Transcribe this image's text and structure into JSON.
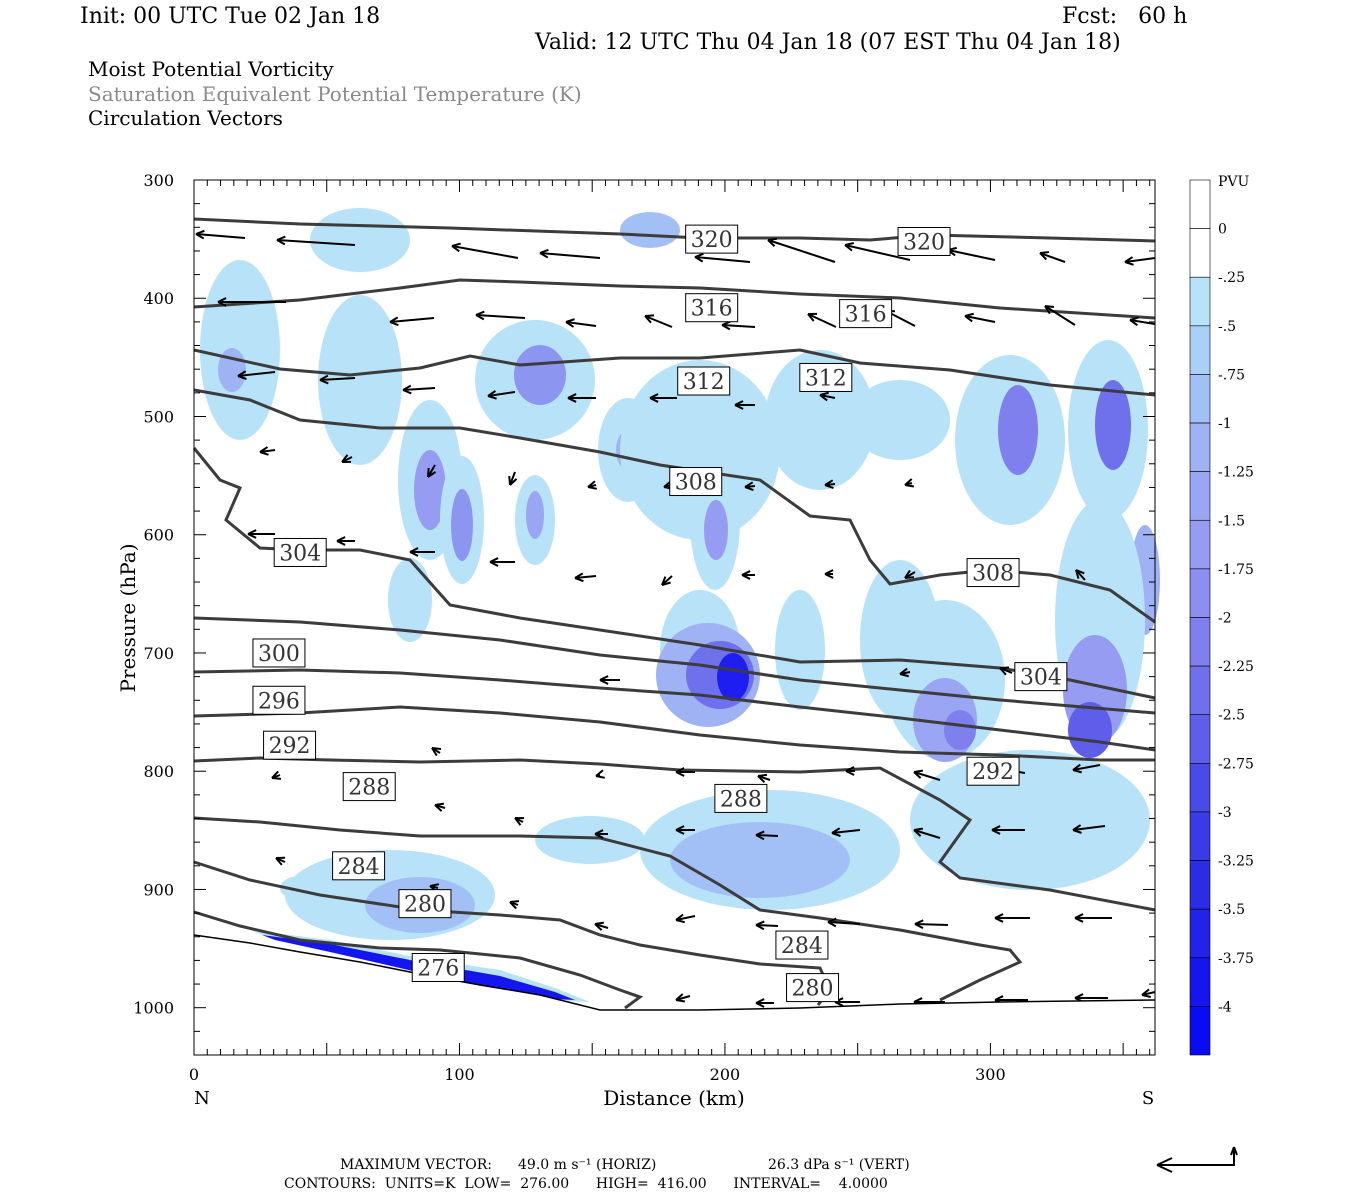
{
  "header": {
    "init": "Init: 00 UTC Tue 02 Jan 18",
    "fcst": "Fcst:   60 h",
    "valid": "Valid: 12 UTC Thu 04 Jan 18 (07 EST Thu 04 Jan 18)",
    "field1": "Moist Potential Vorticity",
    "field2": "Saturation Equivalent Potential Temperature (K)",
    "field3": "Circulation Vectors"
  },
  "footer": {
    "max_label": "MAXIMUM VECTOR:",
    "max_horiz": "49.0 m s⁻¹ (HORIZ)",
    "max_vert": "26.3 dPa s⁻¹ (VERT)",
    "contours": "CONTOURS:  UNITS=K  LOW=  276.00      HIGH=  416.00      INTERVAL=    4.0000"
  },
  "colors": {
    "contour": "#3c3c3c",
    "light_shade": "#b8e2f8",
    "mid_shade": "#8c96f0",
    "dark_shade": "#1e1ef0"
  },
  "chart_data": {
    "type": "cross-section",
    "xlabel": "Distance (km)",
    "ylabel": "Pressure (hPa)",
    "xlim": [
      0,
      362
    ],
    "ylim": [
      1040,
      300
    ],
    "x_ticks": [
      0,
      100,
      200,
      300
    ],
    "y_ticks": [
      300,
      400,
      500,
      600,
      700,
      800,
      900,
      1000
    ],
    "left_end": "N",
    "right_end": "S",
    "colorbar": {
      "unit": "PVU",
      "levels": [
        "0",
        "-.25",
        "-.5",
        "-.75",
        "-1",
        "-1.25",
        "-1.5",
        "-1.75",
        "-2",
        "-2.25",
        "-2.5",
        "-2.75",
        "-3",
        "-3.25",
        "-3.5",
        "-3.75",
        "-4"
      ],
      "colors": [
        "#ffffff",
        "#ffffff",
        "#b8e2f8",
        "#aad0f8",
        "#a3c0f6",
        "#9fb2f4",
        "#9aa6f3",
        "#969cf2",
        "#8c8ef0",
        "#7f80ee",
        "#6f70ec",
        "#5e5eea",
        "#4a4ae8",
        "#3a3ae6",
        "#2c2ce6",
        "#2222e8",
        "#1515ee",
        "#0a0af4"
      ]
    },
    "contour_labels": [
      {
        "value": "320",
        "x": 195,
        "p": 350
      },
      {
        "value": "320",
        "x": 275,
        "p": 352
      },
      {
        "value": "316",
        "x": 195,
        "p": 408
      },
      {
        "value": "316",
        "x": 253,
        "p": 413
      },
      {
        "value": "312",
        "x": 192,
        "p": 470
      },
      {
        "value": "312",
        "x": 238,
        "p": 467
      },
      {
        "value": "308",
        "x": 189,
        "p": 555
      },
      {
        "value": "308",
        "x": 301,
        "p": 632
      },
      {
        "value": "304",
        "x": 40,
        "p": 615
      },
      {
        "value": "304",
        "x": 319,
        "p": 720
      },
      {
        "value": "300",
        "x": 32,
        "p": 700
      },
      {
        "value": "296",
        "x": 32,
        "p": 740
      },
      {
        "value": "292",
        "x": 36,
        "p": 778
      },
      {
        "value": "292",
        "x": 301,
        "p": 800
      },
      {
        "value": "288",
        "x": 66,
        "p": 813
      },
      {
        "value": "288",
        "x": 206,
        "p": 823
      },
      {
        "value": "284",
        "x": 62,
        "p": 880
      },
      {
        "value": "284",
        "x": 229,
        "p": 947
      },
      {
        "value": "280",
        "x": 87,
        "p": 912
      },
      {
        "value": "280",
        "x": 233,
        "p": 983
      },
      {
        "value": "276",
        "x": 92,
        "p": 966
      }
    ]
  }
}
